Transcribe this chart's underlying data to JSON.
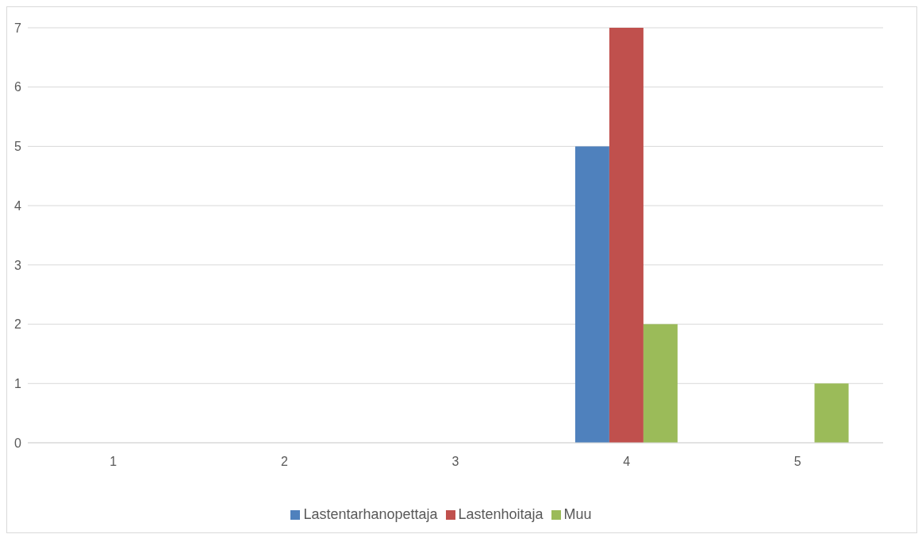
{
  "chart_data": {
    "type": "bar",
    "categories": [
      "1",
      "2",
      "3",
      "4",
      "5"
    ],
    "series": [
      {
        "name": "Lastentarhanopettaja",
        "color": "#4f81bd",
        "values": [
          0,
          0,
          0,
          5,
          0
        ]
      },
      {
        "name": "Lastenhoitaja",
        "color": "#c0504d",
        "values": [
          0,
          0,
          0,
          7,
          0
        ]
      },
      {
        "name": "Muu",
        "color": "#9bbb59",
        "values": [
          0,
          0,
          0,
          2,
          1
        ]
      }
    ],
    "ylim": [
      0,
      7
    ],
    "yticks": [
      0,
      1,
      2,
      3,
      4,
      5,
      6,
      7
    ],
    "grid": "y",
    "legend": "bottom"
  }
}
